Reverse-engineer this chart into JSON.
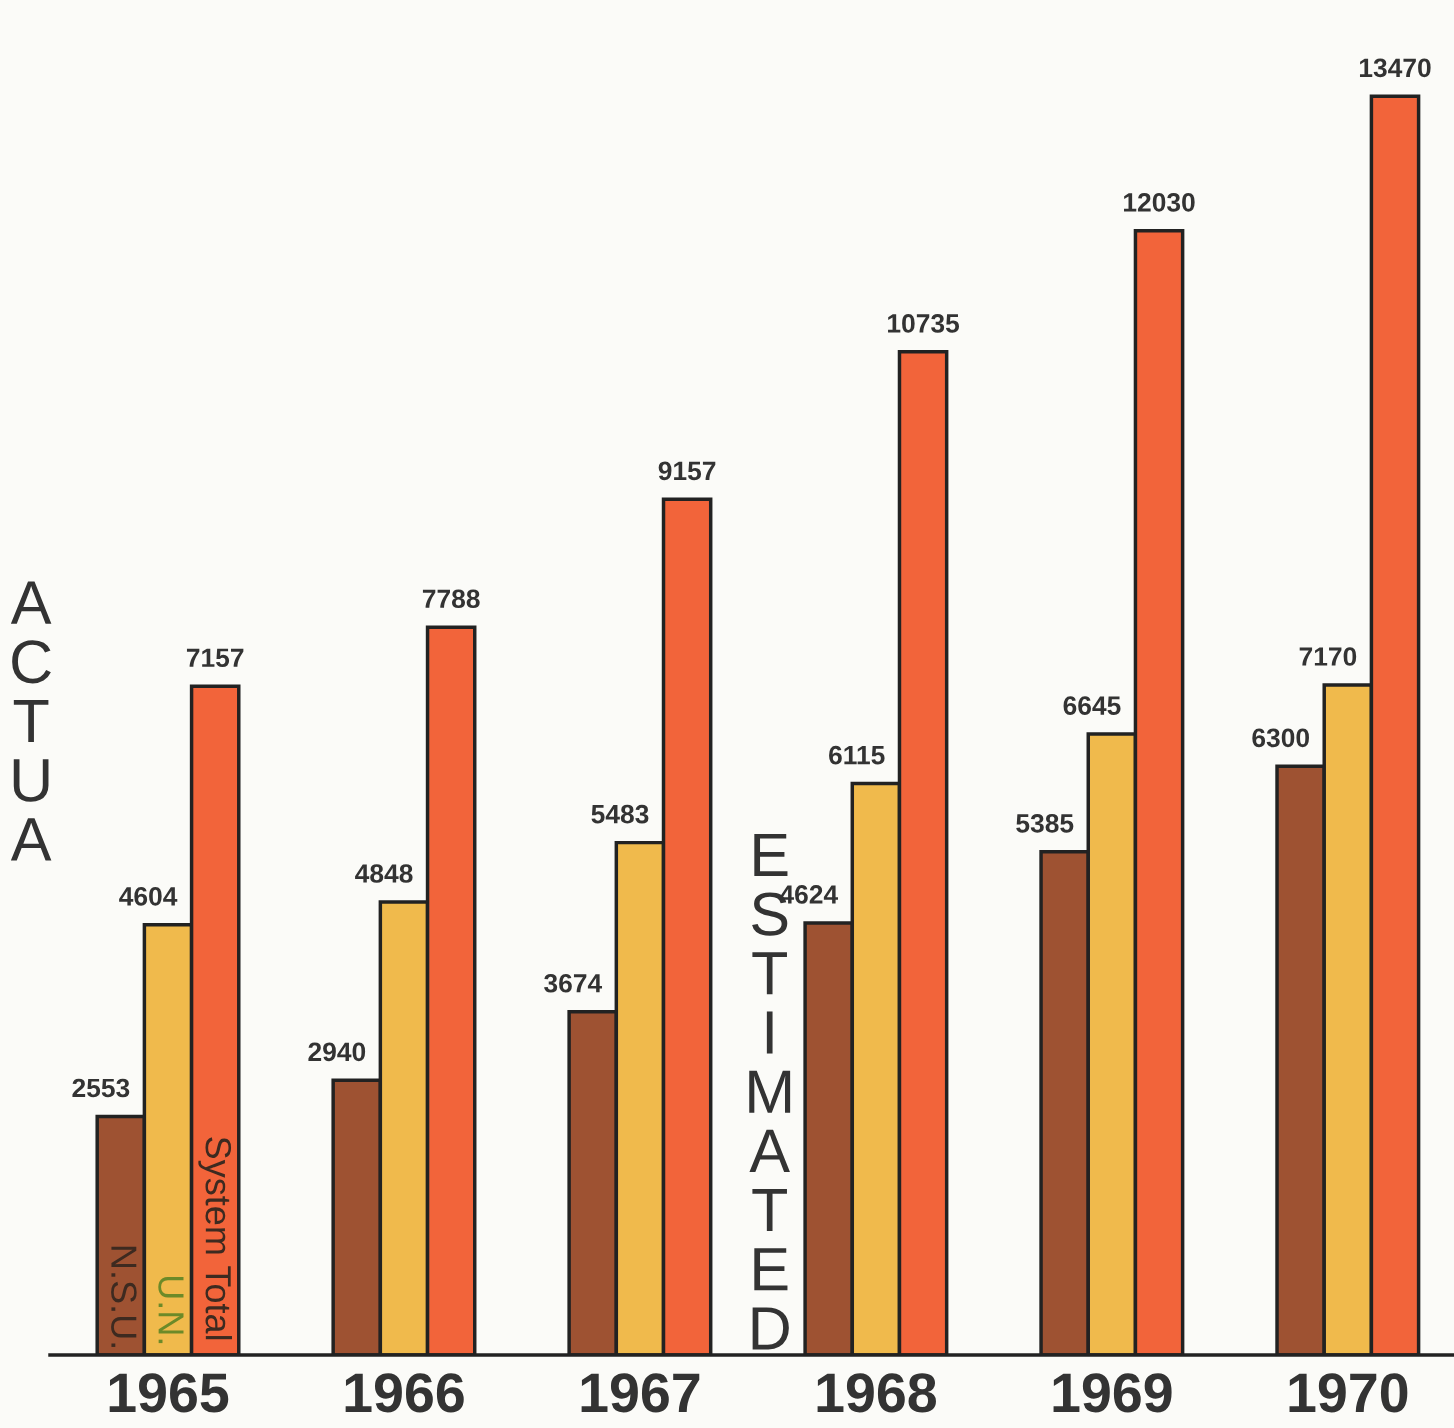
{
  "chart_data": {
    "type": "bar",
    "categories": [
      "1965",
      "1966",
      "1967",
      "1968",
      "1969",
      "1970"
    ],
    "series": [
      {
        "name": "N.S.U.",
        "color": "#9e5232",
        "values": [
          2553,
          2940,
          3674,
          4624,
          5385,
          6300
        ]
      },
      {
        "name": "U.N.",
        "color": "#f0ba4c",
        "values": [
          4604,
          4848,
          5483,
          6115,
          6645,
          7170
        ]
      },
      {
        "name": "System Total",
        "color": "#f2643a",
        "values": [
          7157,
          7788,
          9157,
          10735,
          12030,
          13470
        ]
      }
    ],
    "ylim": [
      0,
      14500
    ],
    "tick_labels": "x",
    "data_labels": true,
    "grid": false,
    "annotations": [
      "ACTUA",
      "ESTIMATED"
    ]
  }
}
